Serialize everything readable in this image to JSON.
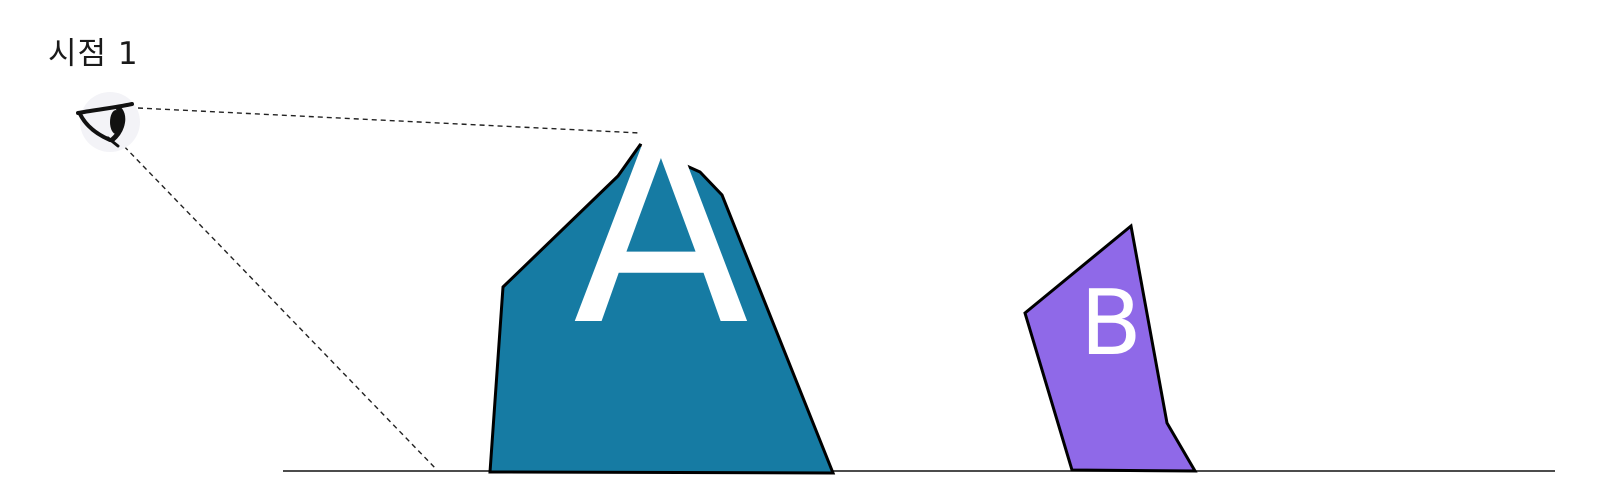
{
  "viewpoint": {
    "label": "시점 1",
    "icon": "eye-icon"
  },
  "objects": {
    "a": {
      "letter": "A",
      "fill": "#167ba3"
    },
    "b": {
      "letter": "B",
      "fill": "#8f69e8"
    }
  },
  "colors": {
    "outline": "#000000",
    "background": "#ffffff",
    "letter": "#ffffff"
  }
}
